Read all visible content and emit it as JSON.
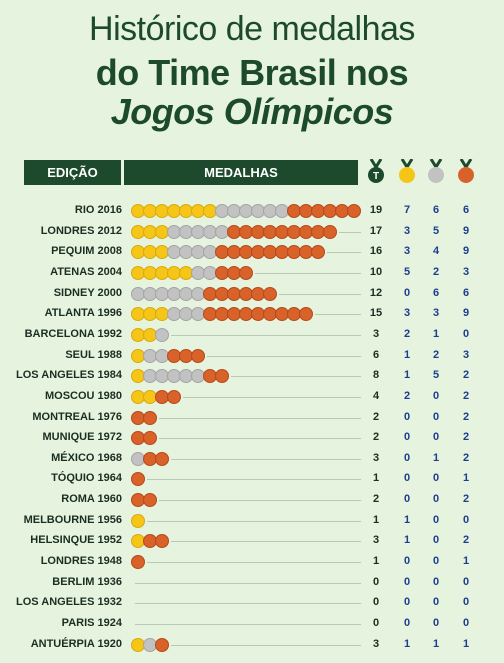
{
  "title": {
    "line1": "Histórico de medalhas",
    "line2": "do Time Brasil nos",
    "line3": "Jogos Olímpicos"
  },
  "header": {
    "edicao": "EDIÇÃO",
    "medalhas": "MEDALHAS"
  },
  "colors": {
    "gold": "#f5c518",
    "silver": "#c2c2c2",
    "bronze": "#d9622b",
    "dark_green": "#1d4a2c",
    "background": "#e6f4df"
  },
  "icons": [
    "total-medals-icon",
    "gold-medal-icon",
    "silver-medal-icon",
    "bronze-medal-icon"
  ],
  "chart_data": {
    "type": "table",
    "columns": [
      "EDIÇÃO",
      "MEDALHAS",
      "total",
      "ouro",
      "prata",
      "bronze"
    ],
    "rows": [
      {
        "edition": "RIO 2016",
        "total": 19,
        "gold": 7,
        "silver": 6,
        "bronze": 6
      },
      {
        "edition": "LONDRES 2012",
        "total": 17,
        "gold": 3,
        "silver": 5,
        "bronze": 9
      },
      {
        "edition": "PEQUIM 2008",
        "total": 16,
        "gold": 3,
        "silver": 4,
        "bronze": 9
      },
      {
        "edition": "ATENAS 2004",
        "total": 10,
        "gold": 5,
        "silver": 2,
        "bronze": 3
      },
      {
        "edition": "SIDNEY 2000",
        "total": 12,
        "gold": 0,
        "silver": 6,
        "bronze": 6
      },
      {
        "edition": "ATLANTA 1996",
        "total": 15,
        "gold": 3,
        "silver": 3,
        "bronze": 9
      },
      {
        "edition": "BARCELONA 1992",
        "total": 3,
        "gold": 2,
        "silver": 1,
        "bronze": 0
      },
      {
        "edition": "SEUL 1988",
        "total": 6,
        "gold": 1,
        "silver": 2,
        "bronze": 3
      },
      {
        "edition": "LOS ANGELES 1984",
        "total": 8,
        "gold": 1,
        "silver": 5,
        "bronze": 2
      },
      {
        "edition": "MOSCOU 1980",
        "total": 4,
        "gold": 2,
        "silver": 0,
        "bronze": 2
      },
      {
        "edition": "MONTREAL 1976",
        "total": 2,
        "gold": 0,
        "silver": 0,
        "bronze": 2
      },
      {
        "edition": "MUNIQUE 1972",
        "total": 2,
        "gold": 0,
        "silver": 0,
        "bronze": 2
      },
      {
        "edition": "MÉXICO 1968",
        "total": 3,
        "gold": 0,
        "silver": 1,
        "bronze": 2
      },
      {
        "edition": "TÓQUIO 1964",
        "total": 1,
        "gold": 0,
        "silver": 0,
        "bronze": 1
      },
      {
        "edition": "ROMA 1960",
        "total": 2,
        "gold": 0,
        "silver": 0,
        "bronze": 2
      },
      {
        "edition": "MELBOURNE 1956",
        "total": 1,
        "gold": 1,
        "silver": 0,
        "bronze": 0
      },
      {
        "edition": "HELSINQUE 1952",
        "total": 3,
        "gold": 1,
        "silver": 0,
        "bronze": 2
      },
      {
        "edition": "LONDRES 1948",
        "total": 1,
        "gold": 0,
        "silver": 0,
        "bronze": 1
      },
      {
        "edition": "BERLIM 1936",
        "total": 0,
        "gold": 0,
        "silver": 0,
        "bronze": 0
      },
      {
        "edition": "LOS ANGELES 1932",
        "total": 0,
        "gold": 0,
        "silver": 0,
        "bronze": 0
      },
      {
        "edition": "PARIS 1924",
        "total": 0,
        "gold": 0,
        "silver": 0,
        "bronze": 0
      },
      {
        "edition": "ANTUÉRPIA 1920",
        "total": 3,
        "gold": 1,
        "silver": 1,
        "bronze": 1
      }
    ]
  }
}
